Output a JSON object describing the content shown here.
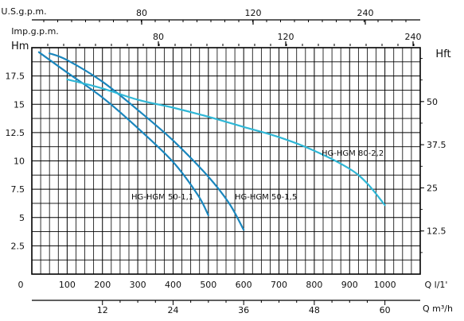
{
  "chart_data": {
    "type": "line",
    "axes": {
      "bottom": {
        "unit": "Q  l/1'",
        "range": [
          0,
          1100
        ],
        "ticks": [
          "0",
          "100",
          "200",
          "300",
          "400",
          "500",
          "600",
          "700",
          "800",
          "900",
          "1000"
        ]
      },
      "bottom2": {
        "unit": "Q  m³/h",
        "ticks": [
          "12",
          "24",
          "36",
          "48",
          "60"
        ]
      },
      "top1": {
        "unit": "U.S.g.p.m.",
        "ticks": [
          "80",
          "120",
          "240"
        ]
      },
      "top2": {
        "unit": "Imp.g.p.m.",
        "ticks": [
          "80",
          "120",
          "240"
        ]
      },
      "left": {
        "unit": "Hm",
        "range": [
          0,
          20
        ],
        "ticks": [
          "2.5",
          "5",
          "7.5",
          "10",
          "12.5",
          "15",
          "17.5"
        ]
      },
      "right": {
        "unit": "Hft",
        "ticks": [
          "12.5",
          "25",
          "37.5",
          "50"
        ]
      }
    },
    "grid": true,
    "series": [
      {
        "name": "HG-HGM 50-1,1",
        "color": "#1a86bd",
        "points": [
          [
            20,
            19.6
          ],
          [
            100,
            17.8
          ],
          [
            200,
            15.6
          ],
          [
            300,
            12.9
          ],
          [
            400,
            9.9
          ],
          [
            470,
            7.0
          ],
          [
            500,
            5.2
          ]
        ]
      },
      {
        "name": "HG-HGM 50-1,5",
        "color": "#1a86bd",
        "points": [
          [
            50,
            19.5
          ],
          [
            100,
            18.9
          ],
          [
            200,
            17.0
          ],
          [
            300,
            14.5
          ],
          [
            400,
            11.8
          ],
          [
            500,
            8.6
          ],
          [
            560,
            6.2
          ],
          [
            600,
            3.9
          ]
        ]
      },
      {
        "name": "HG-HGM 80-2,2",
        "color": "#2fb7d6",
        "points": [
          [
            100,
            17.2
          ],
          [
            200,
            16.4
          ],
          [
            300,
            15.4
          ],
          [
            400,
            14.7
          ],
          [
            500,
            13.9
          ],
          [
            600,
            13.0
          ],
          [
            700,
            12.1
          ],
          [
            800,
            10.9
          ],
          [
            900,
            9.3
          ],
          [
            950,
            8.0
          ],
          [
            1000,
            6.1
          ]
        ]
      }
    ]
  }
}
